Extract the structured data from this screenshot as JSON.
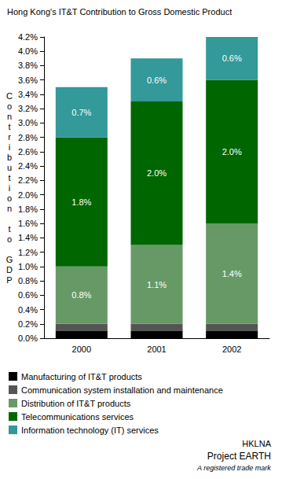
{
  "chart_data": {
    "type": "bar",
    "title": "Hong Kong's IT&T Contribution to Gross Domestic Product",
    "y_label": "Contribution to GDP",
    "categories": [
      "2000",
      "2001",
      "2002"
    ],
    "stacked": true,
    "data_labels": true,
    "grid": false,
    "legend": "bottom",
    "series": [
      {
        "name": "Manufacturing of IT&T products",
        "color": "#000000",
        "values": [
          0.1,
          0.1,
          0.1
        ]
      },
      {
        "name": "Communication system installation and maintenance",
        "color": "#555555",
        "values": [
          0.1,
          0.1,
          0.1
        ]
      },
      {
        "name": "Distribution of IT&T products",
        "color": "#669966",
        "values": [
          0.8,
          1.1,
          1.4
        ],
        "value_labels": [
          "0.8%",
          "1.1%",
          "1.4%"
        ]
      },
      {
        "name": "Telecommunications services",
        "color": "#006600",
        "values": [
          1.8,
          2.0,
          2.0
        ],
        "value_labels": [
          "1.8%",
          "2.0%",
          "2.0%"
        ]
      },
      {
        "name": "Information technology (IT) services",
        "color": "#339999",
        "values": [
          0.7,
          0.6,
          0.6
        ],
        "value_labels": [
          "0.7%",
          "0.6%",
          "0.6%"
        ]
      }
    ],
    "ylim": [
      0,
      4.2
    ],
    "yticks": [
      {
        "value": 0,
        "label": "0.0%"
      },
      {
        "value": 0.2,
        "label": "0.2%"
      },
      {
        "value": 0.4,
        "label": "0.4%"
      },
      {
        "value": 0.6,
        "label": "0.6%"
      },
      {
        "value": 0.8,
        "label": "0.8%"
      },
      {
        "value": 1.0,
        "label": "1.0%"
      },
      {
        "value": 1.2,
        "label": "1.2%"
      },
      {
        "value": 1.4,
        "label": "1.4%"
      },
      {
        "value": 1.6,
        "label": "1.6%"
      },
      {
        "value": 1.8,
        "label": "1.8%"
      },
      {
        "value": 2.0,
        "label": "2.0%"
      },
      {
        "value": 2.2,
        "label": "2.2%"
      },
      {
        "value": 2.4,
        "label": "2.4%"
      },
      {
        "value": 2.6,
        "label": "2.6%"
      },
      {
        "value": 2.8,
        "label": "2.8%"
      },
      {
        "value": 3.0,
        "label": "3.0%"
      },
      {
        "value": 3.2,
        "label": "3.2%"
      },
      {
        "value": 3.4,
        "label": "3.4%"
      },
      {
        "value": 3.6,
        "label": "3.6%"
      },
      {
        "value": 3.8,
        "label": "3.8%"
      },
      {
        "value": 4.0,
        "label": "4.0%"
      },
      {
        "value": 4.2,
        "label": "4.2%"
      }
    ],
    "annotations": [
      "HKLNA",
      "Project EARTH",
      "A registered trade mark"
    ]
  }
}
